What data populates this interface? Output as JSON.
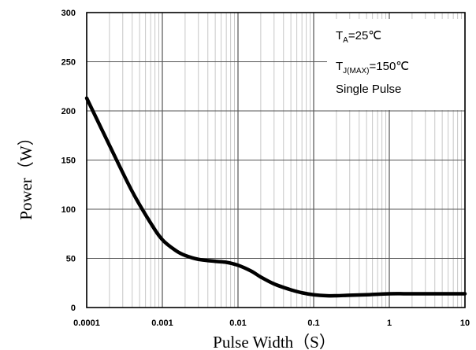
{
  "chart_data": {
    "type": "line",
    "title": "",
    "xlabel": "Pulse Width（S）",
    "ylabel": "Power（W）",
    "x_scale": "log",
    "xlim": [
      0.0001,
      10
    ],
    "ylim": [
      0,
      300
    ],
    "x_ticks": [
      "0.0001",
      "0.001",
      "0.01",
      "0.1",
      "1",
      "10"
    ],
    "y_ticks": [
      "0",
      "50",
      "100",
      "150",
      "200",
      "250",
      "300"
    ],
    "grid": true,
    "annotations": [
      {
        "base": "T",
        "sub": "A",
        "rest": "=25℃"
      },
      {
        "base": "T",
        "sub": "J(MAX)",
        "rest": "=150℃"
      },
      {
        "base": "",
        "sub": "",
        "rest": "Single Pulse"
      }
    ],
    "series": [
      {
        "color": "#000000",
        "x": [
          0.0001,
          0.0002,
          0.0004,
          0.0007,
          0.001,
          0.0015,
          0.002,
          0.003,
          0.005,
          0.007,
          0.01,
          0.015,
          0.02,
          0.03,
          0.05,
          0.07,
          0.1,
          0.15,
          0.2,
          0.3,
          0.5,
          1,
          2,
          5,
          10
        ],
        "y": [
          213,
          165,
          118,
          86,
          69,
          58,
          53,
          49,
          47,
          46,
          43,
          37,
          31,
          24,
          18,
          15,
          13,
          12,
          12,
          12.5,
          13,
          14,
          14,
          14,
          14
        ]
      }
    ]
  }
}
